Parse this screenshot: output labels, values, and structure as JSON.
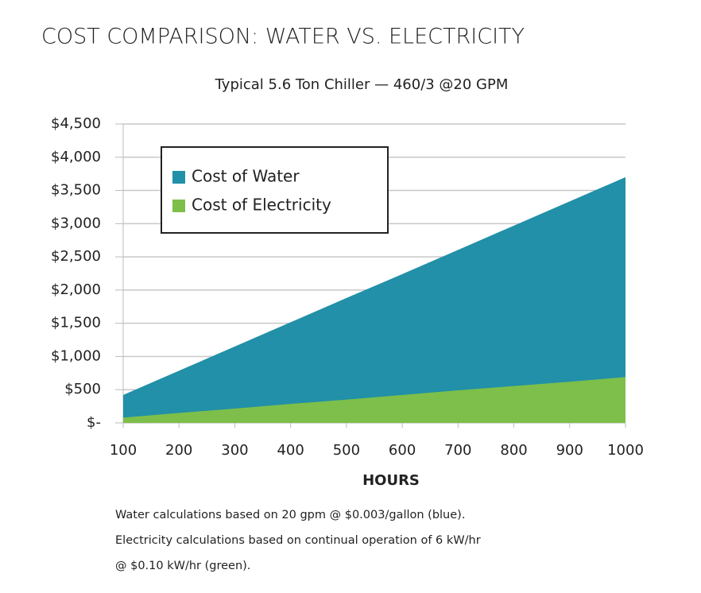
{
  "chart_data": {
    "type": "area",
    "title": "COST COMPARISON: WATER VS. ELECTRICITY",
    "subtitle": "Typical 5.6 Ton Chiller — 460/3 @20 GPM",
    "x_label": "HOURS",
    "x": [
      100,
      200,
      300,
      400,
      500,
      600,
      700,
      800,
      900,
      1000
    ],
    "series": [
      {
        "name": "Cost of Water",
        "color": "#2190a8",
        "values": [
          420,
          785,
          1150,
          1515,
          1880,
          2240,
          2605,
          2970,
          3335,
          3700
        ]
      },
      {
        "name": "Cost of Electricity",
        "color": "#7dbf4a",
        "values": [
          80,
          150,
          215,
          285,
          350,
          420,
          490,
          555,
          620,
          690
        ]
      }
    ],
    "xlim": [
      100,
      1000
    ],
    "xticks": [
      100,
      200,
      300,
      400,
      500,
      600,
      700,
      800,
      900,
      1000
    ],
    "ylim": [
      0,
      4500
    ],
    "yticks": [
      {
        "value": 0,
        "label": "$-"
      },
      {
        "value": 500,
        "label": "$500"
      },
      {
        "value": 1000,
        "label": "$1,000"
      },
      {
        "value": 1500,
        "label": "$1,500"
      },
      {
        "value": 2000,
        "label": "$2,000"
      },
      {
        "value": 2500,
        "label": "$2,500"
      },
      {
        "value": 3000,
        "label": "$3,000"
      },
      {
        "value": 3500,
        "label": "$3,500"
      },
      {
        "value": 4000,
        "label": "$4,000"
      },
      {
        "value": 4500,
        "label": "$4,500"
      }
    ],
    "grid": true,
    "legend": "upper left",
    "notes": [
      "Water calculations based on 20 gpm @ $0.003/gallon (blue).",
      "Electricity calculations based on continual operation of 6 kW/hr",
      "@ $0.10 kW/hr (green)."
    ]
  }
}
